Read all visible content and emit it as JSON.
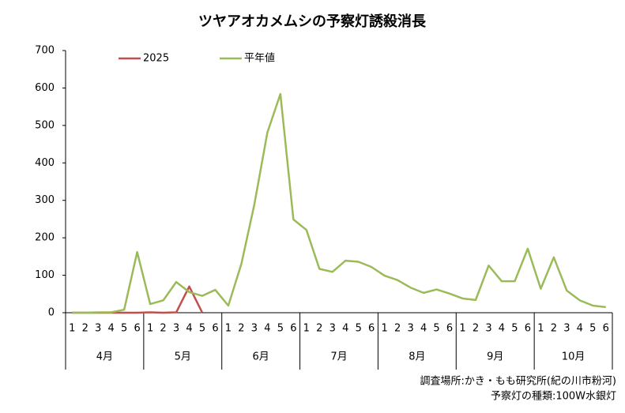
{
  "chart_data": {
    "type": "line",
    "title": "ツヤアオカメムシの予察灯誘殺消長",
    "groups": [
      {
        "label": "4月",
        "categories": [
          "1",
          "2",
          "3",
          "4",
          "5",
          "6"
        ]
      },
      {
        "label": "5月",
        "categories": [
          "1",
          "2",
          "3",
          "4",
          "5",
          "6"
        ]
      },
      {
        "label": "6月",
        "categories": [
          "1",
          "2",
          "3",
          "4",
          "5",
          "6"
        ]
      },
      {
        "label": "7月",
        "categories": [
          "1",
          "2",
          "3",
          "4",
          "5",
          "6"
        ]
      },
      {
        "label": "8月",
        "categories": [
          "1",
          "2",
          "3",
          "4",
          "5",
          "6"
        ]
      },
      {
        "label": "9月",
        "categories": [
          "1",
          "2",
          "3",
          "4",
          "5",
          "6"
        ]
      },
      {
        "label": "10月",
        "categories": [
          "1",
          "2",
          "3",
          "4",
          "5",
          "6"
        ]
      }
    ],
    "series": [
      {
        "name": "2025",
        "color": "#c0504d",
        "values": [
          0,
          0,
          0,
          0,
          0,
          0,
          1,
          0,
          1,
          70,
          0,
          null,
          null,
          null,
          null,
          null,
          null,
          null,
          null,
          null,
          null,
          null,
          null,
          null,
          null,
          null,
          null,
          null,
          null,
          null,
          null,
          null,
          null,
          null,
          null,
          null,
          null,
          null,
          null,
          null,
          null,
          null
        ]
      },
      {
        "name": "平年値",
        "color": "#9bbb59",
        "values": [
          0,
          0,
          1,
          1,
          8,
          162,
          23,
          33,
          82,
          55,
          45,
          61,
          19,
          130,
          289,
          481,
          584,
          249,
          221,
          117,
          109,
          139,
          136,
          122,
          99,
          87,
          67,
          53,
          62,
          51,
          38,
          34,
          126,
          84,
          84,
          171,
          64,
          148,
          59,
          33,
          19,
          15
        ]
      }
    ],
    "ylim": [
      0,
      700
    ],
    "yticks": [
      0,
      100,
      200,
      300,
      400,
      500,
      600,
      700
    ],
    "notes": [
      "調査場所:かき・もも研究所(紀の川市粉河)",
      "予察灯の種類:100W水銀灯"
    ]
  }
}
